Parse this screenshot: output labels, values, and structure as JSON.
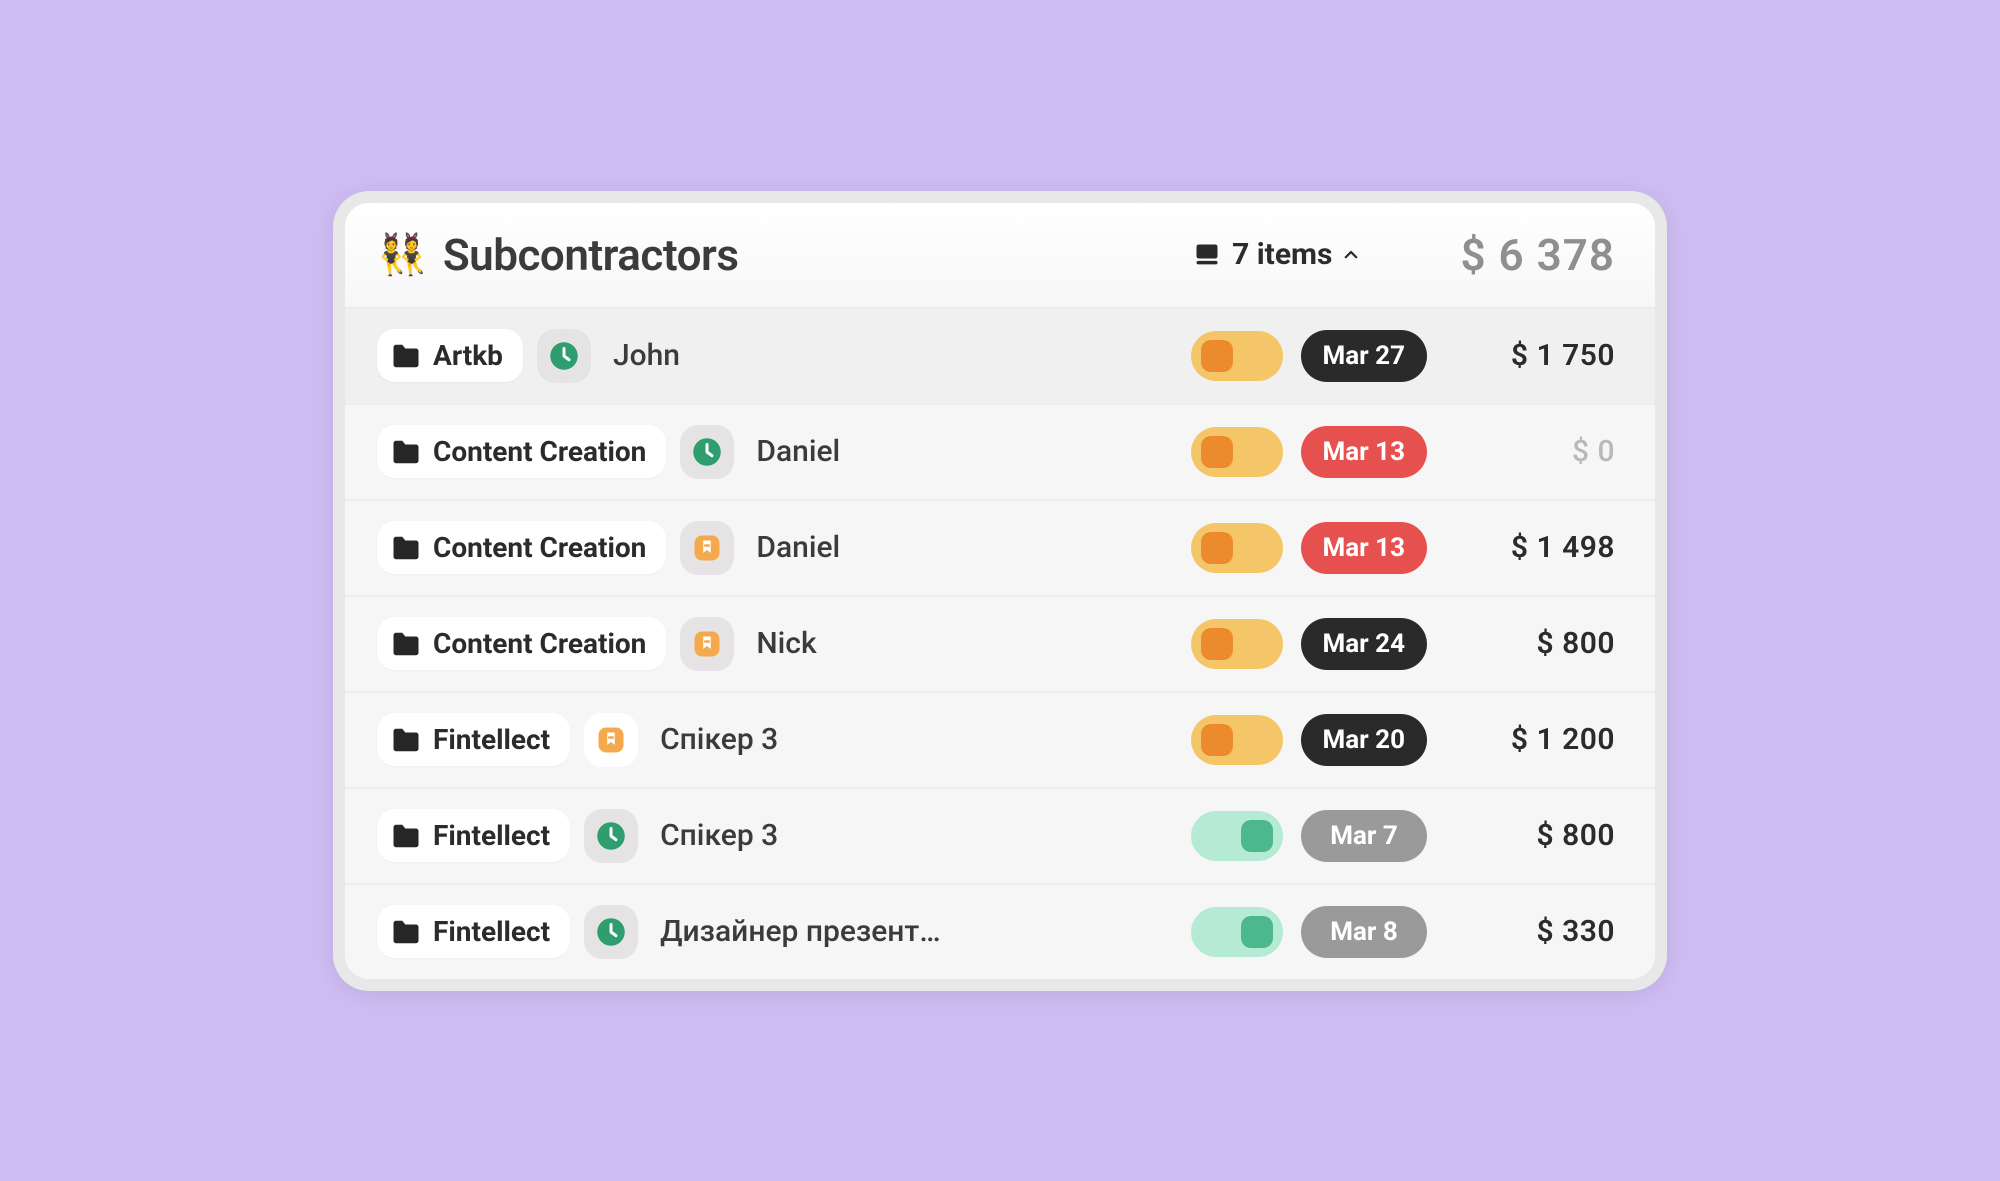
{
  "colors": {
    "page_bg": "#cdbcf2",
    "panel_bg": "#e8e8e8",
    "card_bg": "#fafafa",
    "row_bg": "#f7f6f6",
    "row_bg_first": "#f1f0f0",
    "divider": "#efeeee",
    "text_primary": "#3b3b3b",
    "text_muted": "#8f8f8f",
    "pill_white": "#ffffff",
    "pill_grey": "#e5e3e3",
    "status_green": "#2f9e6e",
    "status_orange": "#f5a94d",
    "toggle_amber_bg": "#f4c667",
    "toggle_amber_knob": "#ec8a2e",
    "toggle_mint_bg": "#b5ebd4",
    "toggle_mint_knob": "#4cb88b",
    "date_black": "#2a2a2a",
    "date_red": "#e6514f",
    "date_grey": "#9a9a9a",
    "folder_icon": "#262626"
  },
  "header": {
    "emoji": "👯",
    "title": "Subcontractors",
    "items_label": "7 items",
    "total": "$ 6 378"
  },
  "rows": [
    {
      "folder": "Artkb",
      "status_bg": "pill_grey",
      "status_icon": "clock",
      "status_icon_color": "status_green",
      "person": "John",
      "toggle_state": "off",
      "toggle_variant": "amber",
      "date": "Mar 27",
      "date_color": "date_black",
      "amount": "$ 1 750",
      "amount_zero": false
    },
    {
      "folder": "Content Creation",
      "status_bg": "pill_grey",
      "status_icon": "clock",
      "status_icon_color": "status_green",
      "person": "Daniel",
      "toggle_state": "off",
      "toggle_variant": "amber",
      "date": "Mar 13",
      "date_color": "date_red",
      "amount": "$ 0",
      "amount_zero": true
    },
    {
      "folder": "Content Creation",
      "status_bg": "pill_grey",
      "status_icon": "bookmark",
      "status_icon_color": "status_orange",
      "person": "Daniel",
      "toggle_state": "off",
      "toggle_variant": "amber",
      "date": "Mar 13",
      "date_color": "date_red",
      "amount": "$ 1 498",
      "amount_zero": false
    },
    {
      "folder": "Content Creation",
      "status_bg": "pill_grey",
      "status_icon": "bookmark",
      "status_icon_color": "status_orange",
      "person": "Nick",
      "toggle_state": "off",
      "toggle_variant": "amber",
      "date": "Mar 24",
      "date_color": "date_black",
      "amount": "$ 800",
      "amount_zero": false
    },
    {
      "folder": "Fintellect",
      "status_bg": "pill_white",
      "status_icon": "bookmark",
      "status_icon_color": "status_orange",
      "person": "Спікер 3",
      "toggle_state": "off",
      "toggle_variant": "amber",
      "date": "Mar 20",
      "date_color": "date_black",
      "amount": "$ 1 200",
      "amount_zero": false
    },
    {
      "folder": "Fintellect",
      "status_bg": "pill_grey",
      "status_icon": "clock",
      "status_icon_color": "status_green",
      "person": "Спікер 3",
      "toggle_state": "on",
      "toggle_variant": "mint",
      "date": "Mar 7",
      "date_color": "date_grey",
      "amount": "$ 800",
      "amount_zero": false
    },
    {
      "folder": "Fintellect",
      "status_bg": "pill_grey",
      "status_icon": "clock",
      "status_icon_color": "status_green",
      "person": "Дизайнер презент…",
      "toggle_state": "on",
      "toggle_variant": "mint",
      "date": "Mar 8",
      "date_color": "date_grey",
      "amount": "$ 330",
      "amount_zero": false
    }
  ]
}
